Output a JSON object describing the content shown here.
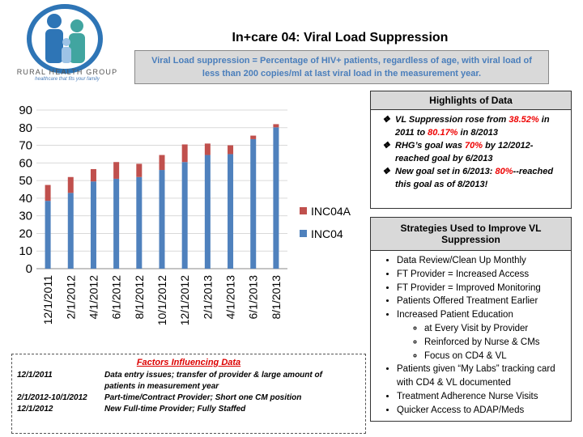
{
  "logo": {
    "name": "RURAL HEALTH GROUP",
    "tagline": "healthcare that fits your family"
  },
  "header": {
    "title": "In+care 04: Viral Load Suppression",
    "definition": "Viral Load suppression = Percentage of HIV+ patients, regardless of age, with  viral load of less than 200 copies/ml at last viral load in the measurement year."
  },
  "chart_data": {
    "type": "stacked_bar",
    "categories": [
      "12/1/2011",
      "2/1/2012",
      "4/1/2012",
      "6/1/2012",
      "8/1/2012",
      "10/1/2012",
      "12/1/2012",
      "2/1/2013",
      "4/1/2013",
      "6/1/2013",
      "8/1/2013"
    ],
    "series": [
      {
        "name": "INC04",
        "color": "#4f81bd",
        "values": [
          38.5,
          43,
          49.5,
          51,
          52,
          56,
          60.5,
          64.5,
          65,
          73.5,
          80.2
        ]
      },
      {
        "name": "INC04A",
        "color": "#c0504d",
        "values": [
          9,
          9,
          7,
          9.5,
          7.5,
          8.5,
          10,
          6.5,
          5,
          2,
          1.8
        ]
      }
    ],
    "ylim": [
      0,
      90
    ],
    "yticks": [
      0,
      10,
      20,
      30,
      40,
      50,
      60,
      70,
      80,
      90
    ],
    "grid": true,
    "legend": "right"
  },
  "highlights": {
    "title": "Highlights of Data",
    "items": [
      [
        "VL Suppression rose from ",
        "38.52%",
        " in 2011 to ",
        "80.17%",
        " in 8/2013"
      ],
      [
        "RHG’s goal was ",
        "70%",
        " by 12/2012-reached goal by 6/2013"
      ],
      [
        "New goal set in 6/2013: ",
        "80%",
        "--reached this goal as of 8/2013!"
      ]
    ]
  },
  "strategies": {
    "title": "Strategies Used to Improve VL Suppression",
    "items": [
      {
        "text": "Data Review/Clean Up Monthly"
      },
      {
        "text": "FT Provider = Increased Access"
      },
      {
        "text": "FT Provider = Improved Monitoring"
      },
      {
        "text": "Patients Offered Treatment Earlier"
      },
      {
        "text": "Increased Patient Education",
        "items": [
          "at Every Visit by Provider",
          "Reinforced by Nurse & CMs",
          "Focus on CD4 & VL"
        ]
      },
      {
        "text": "Patients given “My Labs” tracking card with CD4 & VL documented"
      },
      {
        "text": "Treatment Adherence Nurse Visits"
      },
      {
        "text": "Quicker Access to ADAP/Meds"
      }
    ]
  },
  "factors": {
    "title": "Factors Influencing Data",
    "rows": [
      [
        "12/1/2011",
        "Data entry issues; transfer of provider & large amount of patients in measurement year"
      ],
      [
        "2/1/2012-10/1/2012",
        "Part-time/Contract Provider; Short one CM position"
      ],
      [
        "12/1/2012",
        "New Full-time Provider; Fully Staffed"
      ]
    ]
  }
}
